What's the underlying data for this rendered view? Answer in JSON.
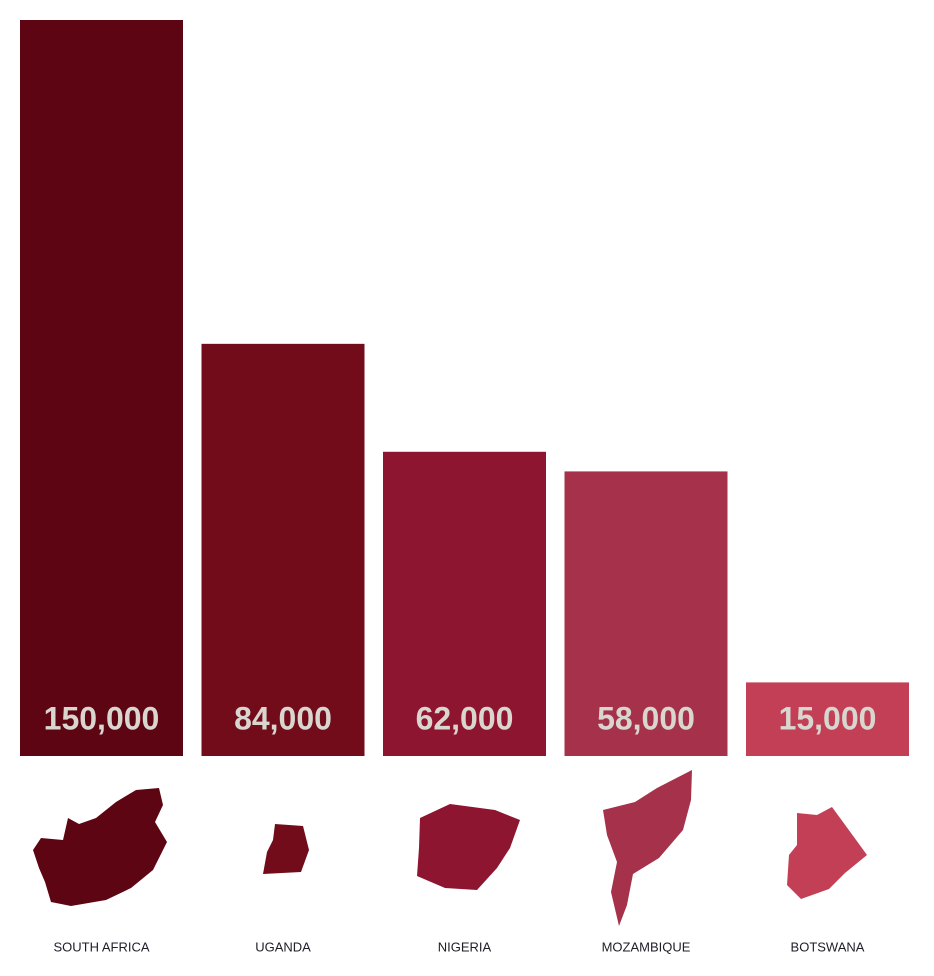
{
  "chart_data": {
    "type": "bar",
    "categories": [
      "SOUTH AFRICA",
      "UGANDA",
      "NIGERIA",
      "MOZAMBIQUE",
      "BOTSWANA"
    ],
    "values": [
      150000,
      84000,
      62000,
      58000,
      15000
    ],
    "value_labels": [
      "150,000",
      "84,000",
      "62,000",
      "58,000",
      "15,000"
    ],
    "colors": [
      "#5e0514",
      "#720b1a",
      "#8e152f",
      "#a5324a",
      "#c23f55"
    ],
    "ylim": [
      0,
      150000
    ]
  }
}
